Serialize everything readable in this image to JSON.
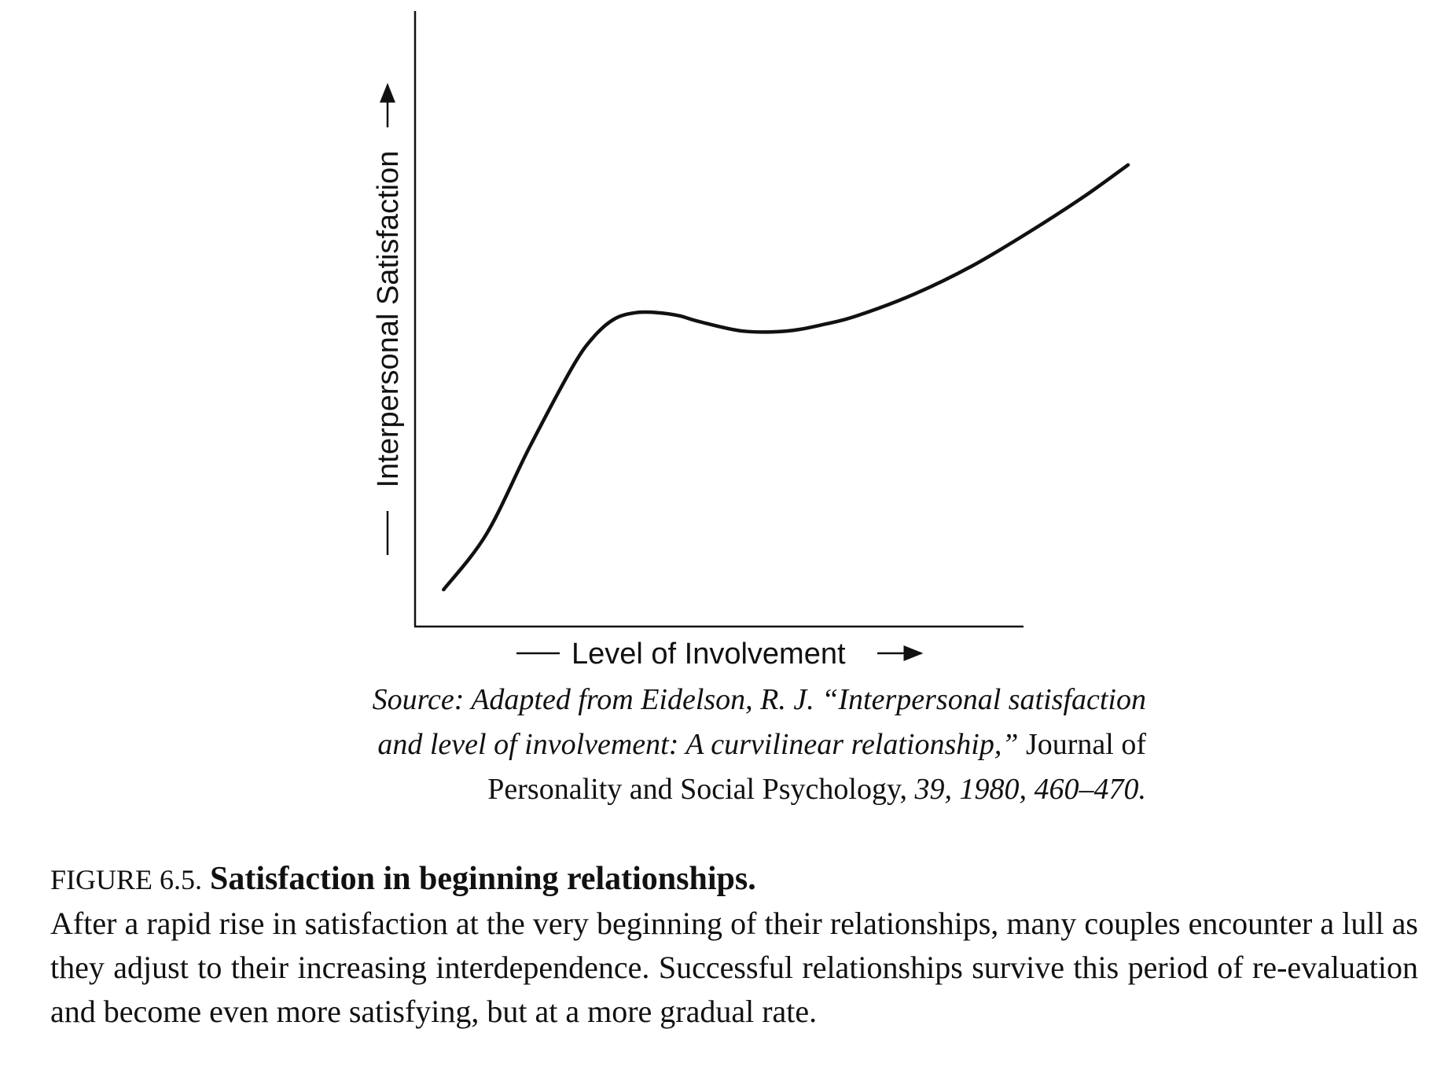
{
  "chart_data": {
    "type": "line",
    "xlabel": "Level of Involvement",
    "ylabel": "Interpersonal Satisfaction",
    "xlim": [
      0,
      100
    ],
    "ylim": [
      0,
      100
    ],
    "grid": false,
    "legend": "none",
    "series": [
      {
        "x": [
          4,
          10,
          16,
          22,
          25,
          28,
          31,
          34,
          37,
          40,
          46,
          52,
          57,
          62,
          70,
          78,
          86,
          94,
          100
        ],
        "y": [
          6,
          15,
          29,
          42,
          47,
          50,
          51,
          51,
          50.5,
          49.5,
          48,
          48,
          49,
          50.5,
          54,
          58.5,
          64,
          70,
          75
        ]
      }
    ],
    "annotations": [
      {
        "source_line1_italic": "Source: Adapted from Eidelson, R. J. “Interpersonal satisfaction",
        "source_line2_italic": "and level of involvement: A curvilinear relationship,”",
        "source_line2_roman": " Journal of",
        "source_line3_roman": "Personality and Social Psychology,",
        "source_line3_italic": " 39, 1980, 460–470."
      }
    ]
  },
  "caption": {
    "figure_number": "FIGURE 6.5.",
    "title": "Satisfaction in beginning relationships.",
    "body": "After a rapid rise in satisfaction at the very beginning of their relationships, many couples encounter a lull as they adjust to their increasing interdependence. Successful relationships survive this period of re-evaluation and become even more satisfying, but at a more gradual rate."
  },
  "colors": {
    "line": "#111111",
    "background": "#ffffff"
  }
}
